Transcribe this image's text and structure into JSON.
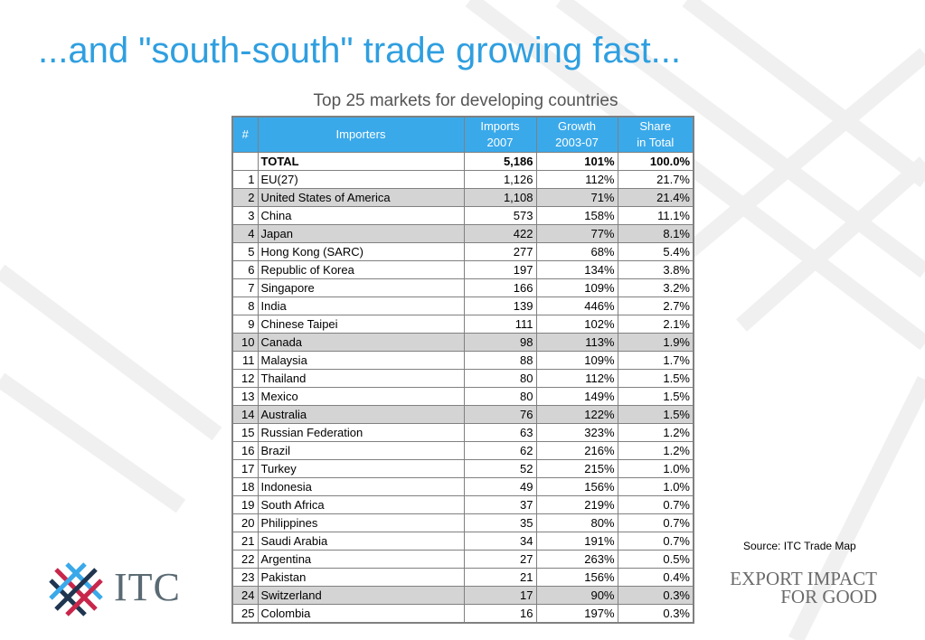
{
  "slide": {
    "title": "...and \"south-south\" trade growing fast..."
  },
  "table": {
    "caption": "Top 25 markets for developing countries",
    "headers": {
      "rank": "#",
      "importers": "Importers",
      "imports_line1": "Imports",
      "imports_line2": "2007",
      "growth_line1": "Growth",
      "growth_line2": "2003-07",
      "share_line1": "Share",
      "share_line2": "in Total"
    },
    "total": {
      "label": "TOTAL",
      "imports": "5,186",
      "growth": "101%",
      "share": "100.0%"
    },
    "rows": [
      {
        "rank": "1",
        "name": "EU(27)",
        "imports": "1,126",
        "growth": "112%",
        "share": "21.7%",
        "shaded": false
      },
      {
        "rank": "2",
        "name": "United States of America",
        "imports": "1,108",
        "growth": "71%",
        "share": "21.4%",
        "shaded": true
      },
      {
        "rank": "3",
        "name": "China",
        "imports": "573",
        "growth": "158%",
        "share": "11.1%",
        "shaded": false
      },
      {
        "rank": "4",
        "name": "Japan",
        "imports": "422",
        "growth": "77%",
        "share": "8.1%",
        "shaded": true
      },
      {
        "rank": "5",
        "name": "Hong Kong (SARC)",
        "imports": "277",
        "growth": "68%",
        "share": "5.4%",
        "shaded": false
      },
      {
        "rank": "6",
        "name": "Republic of Korea",
        "imports": "197",
        "growth": "134%",
        "share": "3.8%",
        "shaded": false
      },
      {
        "rank": "7",
        "name": "Singapore",
        "imports": "166",
        "growth": "109%",
        "share": "3.2%",
        "shaded": false
      },
      {
        "rank": "8",
        "name": "India",
        "imports": "139",
        "growth": "446%",
        "share": "2.7%",
        "shaded": false
      },
      {
        "rank": "9",
        "name": "Chinese Taipei",
        "imports": "111",
        "growth": "102%",
        "share": "2.1%",
        "shaded": false
      },
      {
        "rank": "10",
        "name": "Canada",
        "imports": "98",
        "growth": "113%",
        "share": "1.9%",
        "shaded": true
      },
      {
        "rank": "11",
        "name": "Malaysia",
        "imports": "88",
        "growth": "109%",
        "share": "1.7%",
        "shaded": false
      },
      {
        "rank": "12",
        "name": "Thailand",
        "imports": "80",
        "growth": "112%",
        "share": "1.5%",
        "shaded": false
      },
      {
        "rank": "13",
        "name": "Mexico",
        "imports": "80",
        "growth": "149%",
        "share": "1.5%",
        "shaded": false
      },
      {
        "rank": "14",
        "name": "Australia",
        "imports": "76",
        "growth": "122%",
        "share": "1.5%",
        "shaded": true
      },
      {
        "rank": "15",
        "name": "Russian Federation",
        "imports": "63",
        "growth": "323%",
        "share": "1.2%",
        "shaded": false
      },
      {
        "rank": "16",
        "name": "Brazil",
        "imports": "62",
        "growth": "216%",
        "share": "1.2%",
        "shaded": false
      },
      {
        "rank": "17",
        "name": "Turkey",
        "imports": "52",
        "growth": "215%",
        "share": "1.0%",
        "shaded": false
      },
      {
        "rank": "18",
        "name": "Indonesia",
        "imports": "49",
        "growth": "156%",
        "share": "1.0%",
        "shaded": false
      },
      {
        "rank": "19",
        "name": "South Africa",
        "imports": "37",
        "growth": "219%",
        "share": "0.7%",
        "shaded": false
      },
      {
        "rank": "20",
        "name": "Philippines",
        "imports": "35",
        "growth": "80%",
        "share": "0.7%",
        "shaded": false
      },
      {
        "rank": "21",
        "name": "Saudi Arabia",
        "imports": "34",
        "growth": "191%",
        "share": "0.7%",
        "shaded": false
      },
      {
        "rank": "22",
        "name": "Argentina",
        "imports": "27",
        "growth": "263%",
        "share": "0.5%",
        "shaded": false
      },
      {
        "rank": "23",
        "name": "Pakistan",
        "imports": "21",
        "growth": "156%",
        "share": "0.4%",
        "shaded": false
      },
      {
        "rank": "24",
        "name": "Switzerland",
        "imports": "17",
        "growth": "90%",
        "share": "0.3%",
        "shaded": true
      },
      {
        "rank": "25",
        "name": "Colombia",
        "imports": "16",
        "growth": "197%",
        "share": "0.3%",
        "shaded": false
      }
    ]
  },
  "source": "Source: ITC Trade Map",
  "logo": {
    "text": "ITC",
    "icon": "itc-cross-logo-icon"
  },
  "tagline": {
    "line1": "EXPORT IMPACT",
    "line2": "FOR GOOD"
  },
  "colors": {
    "title": "#2f9fe0",
    "header_bg": "#3aa9ea",
    "shaded_row": "#d4d4d4",
    "logo_red": "#c8264b",
    "logo_navy": "#1f3550",
    "logo_blue": "#3aa9ea"
  }
}
